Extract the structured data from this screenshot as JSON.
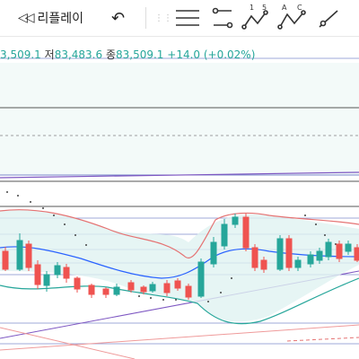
{
  "toolbar": {
    "replay_icon": "double-left-arrow-icon",
    "replay_label": "리플레이",
    "undo_icon": "undo-arrow-icon",
    "tools": [
      "horizontal-lines-icon",
      "trend-line-icon",
      "numbered-wave-icon",
      "abc-wave-icon",
      "ray-line-icon"
    ],
    "wave_labels": {
      "numbered": [
        "1",
        "5"
      ],
      "abc": [
        "A",
        "C"
      ]
    }
  },
  "ohlc": {
    "open_partial": "3,509.1",
    "low_label": "저",
    "low_value": "83,483.6",
    "close_label": "종",
    "close_value": "83,509.1",
    "change": "+14.0 (+0.02%)"
  },
  "colors": {
    "up": "#26a69a",
    "down": "#ef5350",
    "bb_upper": "#e57373",
    "bb_lower": "#26a69a",
    "bb_fill": "#e0f2f1",
    "ma": "#2962ff",
    "gray_line": "#b0bec5",
    "guide": "#9fa8da"
  }
}
